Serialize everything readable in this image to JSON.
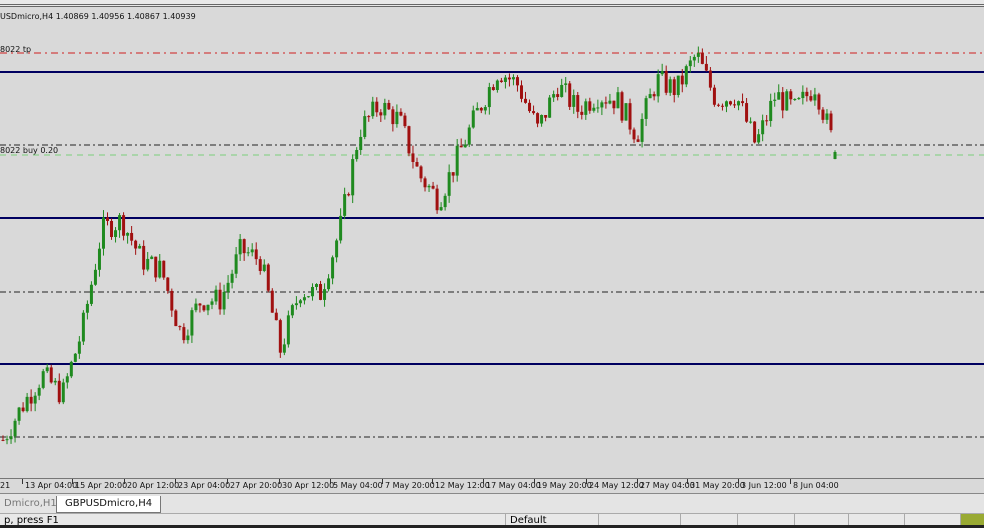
{
  "symbol_info": "USDmicro,H4  1.40869 1.40956 1.40867 1.40939",
  "levels": {
    "tp_label": "8022 tp",
    "buy_label": "8022 buy 0.20",
    "tp_color": "#d02020",
    "buy_color": "#7ccf7c",
    "support_resistance_color": "#000060"
  },
  "chart_data": {
    "type": "candlestick",
    "timeframe": "H4",
    "last_bar": {
      "open": 1.40869,
      "high": 1.40956,
      "low": 1.40867,
      "close": 1.40939
    },
    "x_tick_labels": [
      "21",
      "13 Apr 04:00",
      "15 Apr 20:00",
      "20 Apr 12:00",
      "23 Apr 04:00",
      "27 Apr 20:00",
      "30 Apr 12:00",
      "5 May 04:00",
      "7 May 20:00",
      "12 May 12:00",
      "17 May 04:00",
      "19 May 20:00",
      "24 May 12:00",
      "27 May 04:00",
      "31 May 20:00",
      "3 Jun 12:00",
      "8 Jun 04:00"
    ],
    "approx_close_path": [
      1.3806,
      1.3841,
      1.3871,
      1.3851,
      1.3916,
      1.4016,
      1.4026,
      1.3986,
      1.3976,
      1.3911,
      1.3946,
      1.3946,
      1.3996,
      1.3986,
      1.3896,
      1.3956,
      1.3951,
      1.4016,
      1.4116,
      1.4141,
      1.4126,
      1.4071,
      1.4046,
      1.4091,
      1.4136,
      1.4176,
      1.4161,
      1.4116,
      1.4161,
      1.4136,
      1.4151,
      1.4146,
      1.4111,
      1.4166,
      1.4156,
      1.4191,
      1.4146,
      1.4151,
      1.4101,
      1.4151,
      1.4136,
      1.4161,
      1.4096
    ],
    "up_color": "#1f8a1f",
    "down_color": "#a01010"
  },
  "tabs": [
    "Dmicro,H1",
    "GBPUSDmicro,H4"
  ],
  "status": {
    "help": "p, press F1",
    "profile": "Default"
  }
}
